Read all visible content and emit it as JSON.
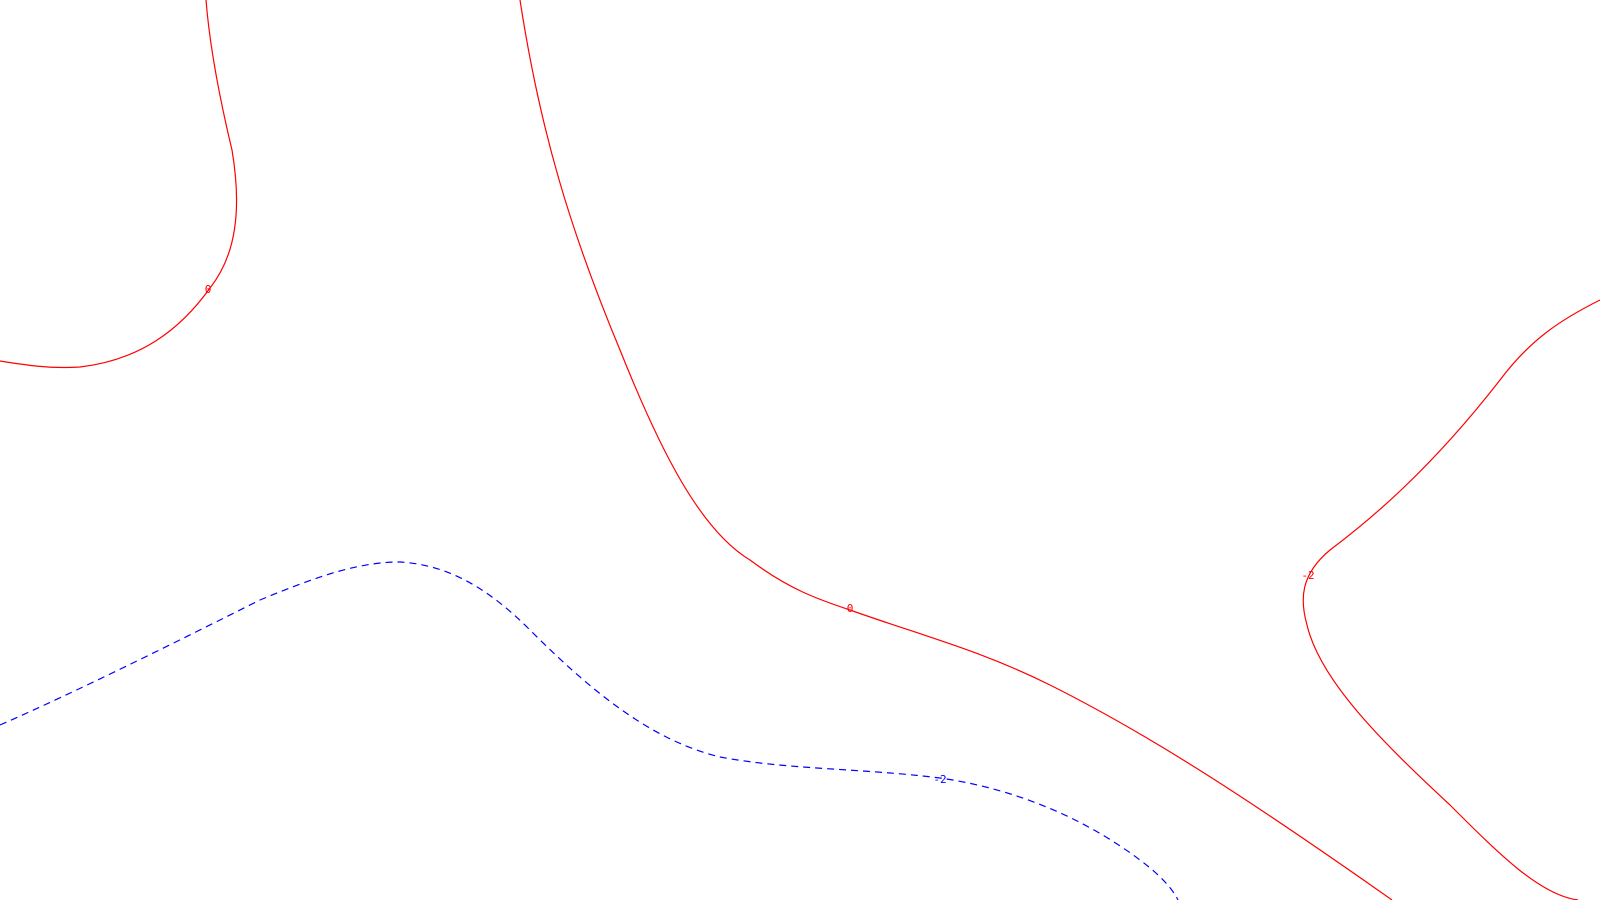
{
  "colors": {
    "background": "#ffffff",
    "contour_red": "#ff0000",
    "contour_blue": "#0000ff"
  },
  "contours": [
    {
      "id": "a",
      "level_label": "0",
      "color": "#ff0000",
      "style": "solid"
    },
    {
      "id": "b",
      "level_label": "0",
      "color": "#ff0000",
      "style": "solid"
    },
    {
      "id": "c",
      "level_label": "-2",
      "color": "#ff0000",
      "style": "solid"
    },
    {
      "id": "d",
      "level_label": "-2",
      "color": "#0000ff",
      "style": "dashed"
    }
  ]
}
